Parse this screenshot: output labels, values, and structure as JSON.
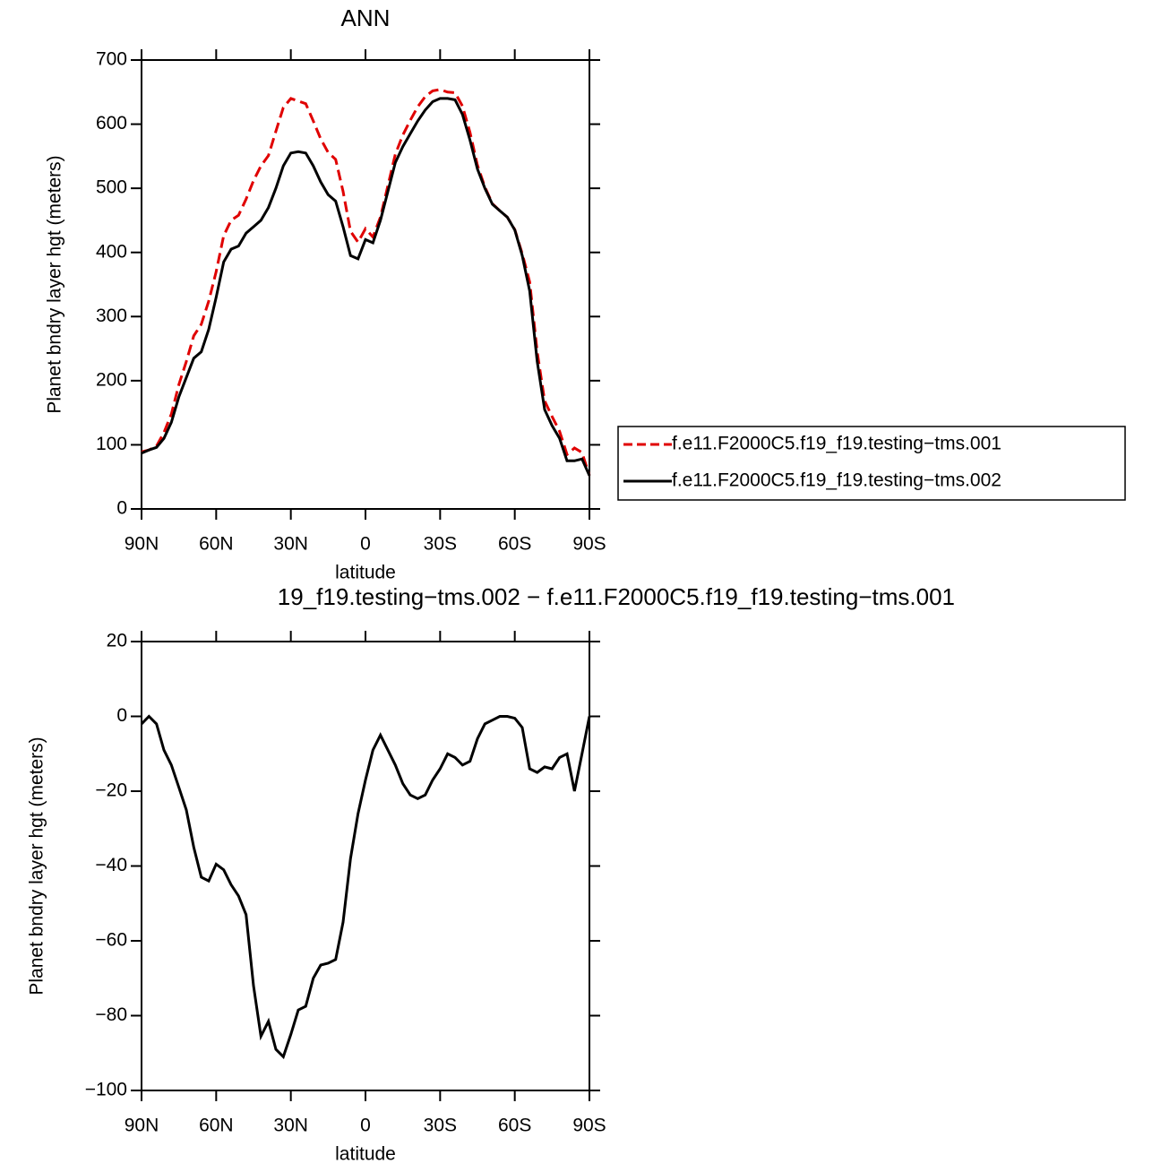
{
  "chart_data": [
    {
      "type": "line",
      "title": "ANN",
      "xlabel": "latitude",
      "ylabel": "Planet bndry layer hgt (meters)",
      "x": [
        90,
        87,
        84,
        81,
        78,
        75,
        72,
        69,
        66,
        63,
        60,
        57,
        54,
        51,
        48,
        45,
        42,
        39,
        36,
        33,
        30,
        27,
        24,
        21,
        18,
        15,
        12,
        9,
        6,
        3,
        0,
        -3,
        -6,
        -9,
        -12,
        -15,
        -18,
        -21,
        -24,
        -27,
        -30,
        -33,
        -36,
        -39,
        -42,
        -45,
        -48,
        -51,
        -54,
        -57,
        -60,
        -63,
        -66,
        -69,
        -72,
        -75,
        -78,
        -81,
        -84,
        -87,
        -90
      ],
      "series": [
        {
          "name": "f.e11.F2000C5.f19_f19.testing−tms.001",
          "color": "#e00000",
          "style": "dashed",
          "values": [
            89,
            92,
            98,
            119,
            148,
            194,
            230,
            270,
            288,
            324,
            370,
            426,
            450,
            458,
            483,
            512,
            535,
            551,
            589,
            626,
            640,
            636,
            632,
            605,
            577,
            556,
            545,
            495,
            433,
            416,
            437,
            424,
            455,
            504,
            553,
            583,
            606,
            627,
            643,
            652,
            654,
            650,
            649,
            628,
            587,
            536,
            502,
            476,
            465,
            455,
            435.5,
            398,
            354,
            245,
            168.5,
            144,
            121,
            85,
            95,
            88,
            52
          ]
        },
        {
          "name": "f.e11.F2000C5.f19_f19.testing−tms.002",
          "color": "#000000",
          "style": "solid",
          "values": [
            87,
            92,
            96,
            110,
            135,
            175,
            205,
            235,
            245,
            280,
            330,
            385,
            405,
            410,
            430,
            440,
            450,
            470,
            500,
            535,
            555,
            557,
            555,
            535,
            510,
            490,
            480,
            440,
            395,
            390,
            420,
            415,
            450,
            495,
            540,
            565,
            585,
            605,
            622,
            635,
            640,
            640,
            638,
            615,
            575,
            530,
            500,
            475,
            465,
            455,
            435,
            395,
            340,
            230,
            155,
            130,
            110,
            75,
            75,
            78,
            52
          ]
        }
      ],
      "xlim": [
        90,
        -90
      ],
      "xticks": [
        {
          "value": 90,
          "label": "90N"
        },
        {
          "value": 60,
          "label": "60N"
        },
        {
          "value": 30,
          "label": "30N"
        },
        0,
        {
          "value": -30,
          "label": "30S"
        },
        {
          "value": -60,
          "label": "60S"
        },
        {
          "value": -90,
          "label": "90S"
        }
      ],
      "ylim": [
        0,
        700
      ],
      "yticks": [
        0,
        100,
        200,
        300,
        400,
        500,
        600,
        700
      ],
      "legend": "outside-right"
    },
    {
      "type": "line",
      "title": "19_f19.testing−tms.002 − f.e11.F2000C5.f19_f19.testing−tms.001",
      "xlabel": "latitude",
      "ylabel": "Planet bndry layer hgt (meters)",
      "x": [
        90,
        87,
        84,
        81,
        78,
        75,
        72,
        69,
        66,
        63,
        60,
        57,
        54,
        51,
        48,
        45,
        42,
        39,
        36,
        33,
        30,
        27,
        24,
        21,
        18,
        15,
        12,
        9,
        6,
        3,
        0,
        -3,
        -6,
        -9,
        -12,
        -15,
        -18,
        -21,
        -24,
        -27,
        -30,
        -33,
        -36,
        -39,
        -42,
        -45,
        -48,
        -51,
        -54,
        -57,
        -60,
        -63,
        -66,
        -69,
        -72,
        -75,
        -78,
        -81,
        -84,
        -87,
        -90
      ],
      "color": "#000000",
      "values": [
        -2,
        0,
        -2,
        -9,
        -13,
        -19,
        -25,
        -35,
        -43,
        -44,
        -39.5,
        -41,
        -45,
        -48,
        -53,
        -72,
        -85.5,
        -81.5,
        -89,
        -91,
        -85,
        -78.5,
        -77.5,
        -70,
        -66.5,
        -66,
        -65,
        -55,
        -38,
        -26,
        -17,
        -9,
        -5,
        -9,
        -13,
        -18,
        -21,
        -22,
        -21,
        -17,
        -14,
        -10,
        -11,
        -13,
        -12,
        -6,
        -2,
        -1,
        0,
        0,
        -0.5,
        -3,
        -14,
        -15,
        -13.5,
        -14,
        -11,
        -10,
        -20,
        -10,
        0
      ],
      "xlim": [
        90,
        -90
      ],
      "xticks": [
        {
          "value": 90,
          "label": "90N"
        },
        {
          "value": 60,
          "label": "60N"
        },
        {
          "value": 30,
          "label": "30N"
        },
        0,
        {
          "value": -30,
          "label": "30S"
        },
        {
          "value": -60,
          "label": "60S"
        },
        {
          "value": -90,
          "label": "90S"
        }
      ],
      "ylim": [
        -100,
        20
      ],
      "yticks": [
        {
          "value": -100,
          "label": "−100"
        },
        {
          "value": -80,
          "label": "−80"
        },
        {
          "value": -60,
          "label": "−60"
        },
        {
          "value": -40,
          "label": "−40"
        },
        {
          "value": -20,
          "label": "−20"
        },
        0,
        20
      ]
    }
  ]
}
